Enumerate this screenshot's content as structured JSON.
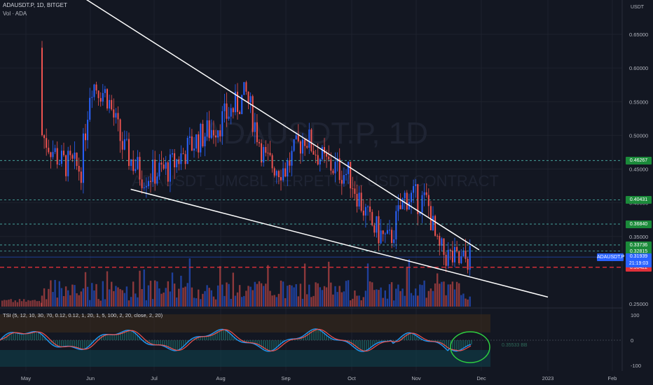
{
  "header": {
    "symbol_line": "ADAUSDT.P, 1D, BITGET",
    "volume_line": "Vol · ADA",
    "indicator_line": "TSI (5, 12, 10, 30, 70, 0.12, 0.12, 1, 20, 1, 5, 100, 2, 20, close, 2, 20)"
  },
  "watermark": {
    "big": "ADAUSDT.P, 1D",
    "small": "ADAUSDT_UMCBL PERPETUAL USDT CONTRACT"
  },
  "price_scale": {
    "currency": "USDT",
    "ticks": [
      "0.65000",
      "0.60000",
      "0.55000",
      "0.50000",
      "0.45000",
      "0.40000",
      "0.35000",
      "0.25000"
    ]
  },
  "time_axis": [
    "May",
    "Jun",
    "Jul",
    "Aug",
    "Sep",
    "Oct",
    "Nov",
    "Dec",
    "2023",
    "Feb"
  ],
  "level_labels": [
    {
      "text": "0.46267",
      "color": "#1b8a3a"
    },
    {
      "text": "0.40431",
      "color": "#1b8a3a"
    },
    {
      "text": "0.36840",
      "color": "#1b8a3a"
    },
    {
      "text": "0.33736",
      "color": "#1b8a3a"
    },
    {
      "text": "0.32815",
      "color": "#1b8a3a"
    },
    {
      "text": "0.30422",
      "color": "#e0303a"
    }
  ],
  "last_price": {
    "symbol": "ADAUSDT.P",
    "price": "0.31939",
    "countdown": "21:19:03",
    "color": "#2962ff"
  },
  "tsi_scale": {
    "ticks": [
      "100",
      "0",
      "-100"
    ]
  },
  "tsi_label": "0.35533 BB",
  "colors": {
    "up": "#2962ff",
    "down": "#ef5350",
    "tsi_fast": "#2196f3",
    "tsi_slow": "#ef5350",
    "trendline": "#ffffff",
    "annotation": "#2ecc40"
  },
  "chart_data": {
    "type": "candlestick",
    "symbol": "ADAUSDT.P",
    "interval": "1D",
    "ylim": [
      0.25,
      0.66
    ],
    "x_range": [
      "May",
      "Feb"
    ],
    "pattern": "falling wedge",
    "trendlines": [
      {
        "name": "upper",
        "from": {
          "x": "2022-05-25",
          "y": 0.71
        },
        "to": {
          "x": "2022-11-30",
          "y": 0.33
        }
      },
      {
        "name": "lower",
        "from": {
          "x": "2022-06-20",
          "y": 0.42
        },
        "to": {
          "x": "2022-12-31",
          "y": 0.26
        }
      }
    ],
    "horizontal_levels": [
      0.46267,
      0.40431,
      0.3684,
      0.33736,
      0.32815,
      0.31939,
      0.30422
    ],
    "monthly_closes": [
      {
        "month": "May",
        "close": 0.53
      },
      {
        "month": "Jun",
        "close": 0.47
      },
      {
        "month": "Jul",
        "close": 0.5
      },
      {
        "month": "Aug",
        "close": 0.46
      },
      {
        "month": "Sep",
        "close": 0.43
      },
      {
        "month": "Oct",
        "close": 0.4
      },
      {
        "month": "Nov",
        "close": 0.32
      }
    ]
  }
}
